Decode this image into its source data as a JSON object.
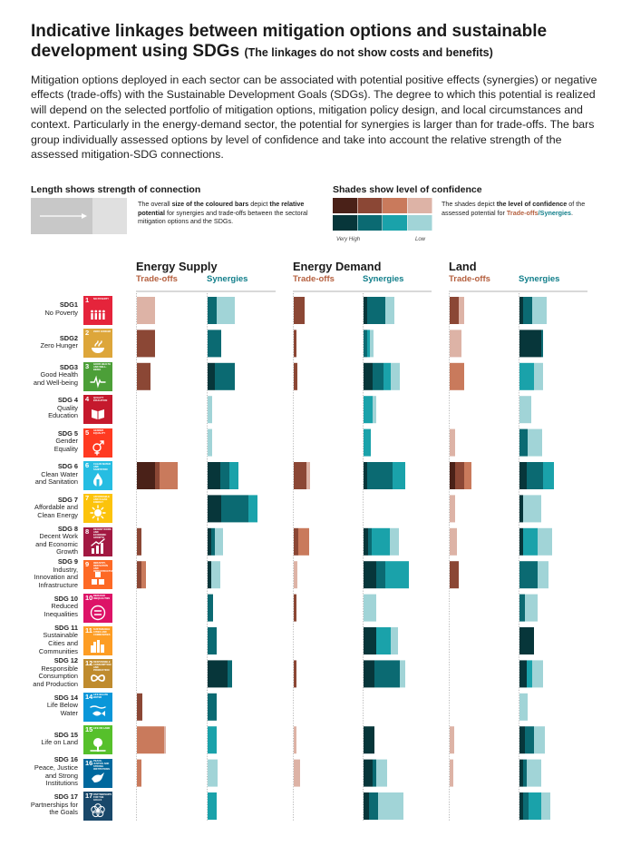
{
  "title": "Indicative linkages between mitigation options and sustainable development using SDGs",
  "subtitle": "(The linkages do not show costs and benefits)",
  "intro": "Mitigation options deployed in each sector can be associated with potential positive effects (synergies) or negative effects (trade-offs) with the Sustainable Development Goals (SDGs). The degree to which this potential is realized will depend on the selected portfolio of mitigation options, mitigation policy design, and local circumstances and context. Particularly in the energy-demand sector, the potential for synergies is larger than for trade-offs. The bars group individually assessed options by level of confidence and take into account the relative strength of the assessed mitigation-SDG connections.",
  "legend": {
    "length_heading": "Length shows strength of connection",
    "length_text_1": "The overall ",
    "length_text_b1": "size of the coloured bars",
    "length_text_2": " depict ",
    "length_text_b2": "the relative potential",
    "length_text_3": " for synergies and trade-offs between the sectoral mitigation options and the SDGs.",
    "shade_heading": "Shades show level of confidence",
    "shade_text_1": "The shades depict ",
    "shade_text_b1": "the level of confidence",
    "shade_text_2": " of the assessed potential for ",
    "shade_tradeoffs": "Trade-offs",
    "shade_slash": "/",
    "shade_synergies": "Synergies",
    "shade_text_3": ".",
    "very_high": "Very High",
    "low": "Low",
    "tradeoff_shades": [
      "#4a2118",
      "#8b4735",
      "#c97a5c",
      "#ddb3a6"
    ],
    "synergy_shades": [
      "#07363a",
      "#0b6a72",
      "#1aa2aa",
      "#a1d4d7"
    ]
  },
  "chart_data": {
    "type": "bar",
    "confidence_levels": [
      "Very High",
      "High",
      "Medium",
      "Low"
    ],
    "sectors": [
      {
        "name": "Energy Supply",
        "tradeoffs_label": "Trade-offs",
        "synergies_label": "Synergies"
      },
      {
        "name": "Energy Demand",
        "tradeoffs_label": "Trade-offs",
        "synergies_label": "Synergies"
      },
      {
        "name": "Land",
        "tradeoffs_label": "Trade-offs",
        "synergies_label": "Synergies"
      }
    ],
    "sdgs": [
      {
        "id": "SDG1",
        "name": "No Poverty",
        "num": "1",
        "tile": "NO POVERTY",
        "color": "#e5243b",
        "icon": "people-icon",
        "values": [
          [
            [
              0,
              0,
              0,
              20
            ],
            [
              0,
              10,
              0,
              20
            ]
          ],
          [
            [
              0,
              12,
              0,
              0
            ],
            [
              4,
              20,
              0,
              10
            ]
          ],
          [
            [
              0,
              10,
              0,
              6
            ],
            [
              4,
              10,
              0,
              16
            ]
          ]
        ]
      },
      {
        "id": "SDG2",
        "name": "Zero Hunger",
        "num": "2",
        "tile": "ZERO HUNGER",
        "color": "#dda63a",
        "icon": "bowl-icon",
        "values": [
          [
            [
              0,
              20,
              0,
              0
            ],
            [
              0,
              15,
              0,
              0
            ]
          ],
          [
            [
              0,
              3,
              0,
              0
            ],
            [
              0,
              4,
              3,
              4
            ]
          ],
          [
            [
              0,
              0,
              0,
              13
            ],
            [
              24,
              2,
              0,
              0
            ]
          ]
        ]
      },
      {
        "id": "SDG3",
        "name": "Good Health\nand Well-being",
        "num": "3",
        "tile": "GOOD HEALTH AND WELL-BEING",
        "color": "#4c9f38",
        "icon": "heartbeat-icon",
        "values": [
          [
            [
              0,
              15,
              0,
              0
            ],
            [
              8,
              22,
              0,
              0
            ]
          ],
          [
            [
              0,
              4,
              0,
              0
            ],
            [
              10,
              12,
              8,
              10
            ]
          ],
          [
            [
              0,
              0,
              16,
              0
            ],
            [
              0,
              0,
              16,
              10
            ]
          ]
        ]
      },
      {
        "id": "SDG 4",
        "name": "Quality\nEducation",
        "num": "4",
        "tile": "QUALITY EDUCATION",
        "color": "#c5192d",
        "icon": "book-icon",
        "values": [
          [
            [
              0,
              0,
              0,
              0
            ],
            [
              0,
              0,
              0,
              5
            ]
          ],
          [
            [
              0,
              0,
              0,
              0
            ],
            [
              0,
              0,
              10,
              4
            ]
          ],
          [
            [
              0,
              0,
              0,
              0
            ],
            [
              0,
              0,
              0,
              13
            ]
          ]
        ]
      },
      {
        "id": "SDG 5",
        "name": "Gender\nEquality",
        "num": "5",
        "tile": "GENDER EQUALITY",
        "color": "#ff3a21",
        "icon": "gender-icon",
        "values": [
          [
            [
              0,
              0,
              0,
              0
            ],
            [
              0,
              0,
              0,
              5
            ]
          ],
          [
            [
              0,
              0,
              0,
              0
            ],
            [
              0,
              0,
              8,
              0
            ]
          ],
          [
            [
              0,
              0,
              0,
              6
            ],
            [
              0,
              9,
              0,
              16
            ]
          ]
        ]
      },
      {
        "id": "SDG 6",
        "name": "Clean Water\nand Sanitation",
        "num": "6",
        "tile": "CLEAN WATER AND SANITATION",
        "color": "#26bde2",
        "icon": "drop-icon",
        "values": [
          [
            [
              20,
              5,
              20,
              0
            ],
            [
              14,
              10,
              10,
              0
            ]
          ],
          [
            [
              0,
              14,
              0,
              4
            ],
            [
              4,
              28,
              14,
              0
            ]
          ],
          [
            [
              6,
              10,
              8,
              0
            ],
            [
              8,
              18,
              12,
              0
            ]
          ]
        ]
      },
      {
        "id": "SDG 7",
        "name": "Affordable and\nClean Energy",
        "num": "7",
        "tile": "AFFORDABLE AND CLEAN ENERGY",
        "color": "#fcc30b",
        "icon": "sun-icon",
        "values": [
          [
            [
              0,
              0,
              0,
              0
            ],
            [
              15,
              30,
              10,
              0
            ]
          ],
          [
            [
              0,
              0,
              0,
              0
            ],
            [
              0,
              0,
              0,
              0
            ]
          ],
          [
            [
              0,
              0,
              0,
              6
            ],
            [
              4,
              0,
              0,
              20
            ]
          ]
        ]
      },
      {
        "id": "SDG 8",
        "name": "Decent Work\nand Economic\nGrowth",
        "num": "8",
        "tile": "DECENT WORK AND ECONOMIC GROWTH",
        "color": "#a21942",
        "icon": "growth-icon",
        "values": [
          [
            [
              0,
              5,
              0,
              0
            ],
            [
              4,
              4,
              0,
              9
            ]
          ],
          [
            [
              0,
              5,
              12,
              0
            ],
            [
              5,
              4,
              20,
              10
            ]
          ],
          [
            [
              0,
              0,
              0,
              8
            ],
            [
              4,
              0,
              16,
              16
            ]
          ]
        ]
      },
      {
        "id": "SDG 9",
        "name": "Industry,\nInnovation and\nInfrastructure",
        "num": "9",
        "tile": "INDUSTRY, INNOVATION AND INFRASTRUCTURE",
        "color": "#fd6925",
        "icon": "cubes-icon",
        "values": [
          [
            [
              0,
              5,
              5,
              0
            ],
            [
              4,
              0,
              0,
              10
            ]
          ],
          [
            [
              0,
              0,
              0,
              4
            ],
            [
              14,
              10,
              26,
              0
            ]
          ],
          [
            [
              0,
              10,
              0,
              0
            ],
            [
              0,
              20,
              0,
              12
            ]
          ]
        ]
      },
      {
        "id": "SDG 10",
        "name": "Reduced\nInequalities",
        "num": "10",
        "tile": "REDUCED INEQUALITIES",
        "color": "#dd1367",
        "icon": "equal-icon",
        "values": [
          [
            [
              0,
              0,
              0,
              0
            ],
            [
              0,
              6,
              0,
              0
            ]
          ],
          [
            [
              0,
              3,
              0,
              0
            ],
            [
              0,
              0,
              0,
              14
            ]
          ],
          [
            [
              0,
              0,
              0,
              0
            ],
            [
              0,
              6,
              0,
              14
            ]
          ]
        ]
      },
      {
        "id": "SDG 11",
        "name": "Sustainable\nCities and\nCommunities",
        "num": "11",
        "tile": "SUSTAINABLE CITIES AND COMMUNITIES",
        "color": "#fd9d24",
        "icon": "city-icon",
        "values": [
          [
            [
              0,
              0,
              0,
              0
            ],
            [
              0,
              10,
              0,
              0
            ]
          ],
          [
            [
              0,
              0,
              0,
              0
            ],
            [
              14,
              0,
              16,
              8
            ]
          ],
          [
            [
              0,
              0,
              0,
              0
            ],
            [
              16,
              0,
              0,
              0
            ]
          ]
        ]
      },
      {
        "id": "SDG 12",
        "name": "Responsible\nConsumption\nand Production",
        "num": "12",
        "tile": "RESPONSIBLE CONSUMPTION AND PRODUCTION",
        "color": "#bf8b2e",
        "icon": "infinity-icon",
        "values": [
          [
            [
              0,
              0,
              0,
              0
            ],
            [
              22,
              5,
              0,
              0
            ]
          ],
          [
            [
              0,
              3,
              0,
              0
            ],
            [
              12,
              28,
              0,
              6
            ]
          ],
          [
            [
              0,
              0,
              0,
              0
            ],
            [
              8,
              0,
              6,
              12
            ]
          ]
        ]
      },
      {
        "id": "SDG 14",
        "name": "Life Below\nWater",
        "num": "14",
        "tile": "LIFE BELOW WATER",
        "color": "#0a97d9",
        "icon": "fish-icon",
        "values": [
          [
            [
              0,
              6,
              0,
              0
            ],
            [
              0,
              10,
              0,
              0
            ]
          ],
          [
            [
              0,
              0,
              0,
              0
            ],
            [
              0,
              0,
              0,
              0
            ]
          ],
          [
            [
              0,
              0,
              0,
              0
            ],
            [
              0,
              0,
              0,
              9
            ]
          ]
        ]
      },
      {
        "id": "SDG 15",
        "name": "Life on Land",
        "num": "15",
        "tile": "LIFE ON LAND",
        "color": "#56c02b",
        "icon": "tree-icon",
        "values": [
          [
            [
              0,
              0,
              30,
              2
            ],
            [
              0,
              0,
              10,
              0
            ]
          ],
          [
            [
              0,
              0,
              0,
              3
            ],
            [
              12,
              0,
              0,
              0
            ]
          ],
          [
            [
              0,
              0,
              0,
              5
            ],
            [
              6,
              10,
              0,
              12
            ]
          ]
        ]
      },
      {
        "id": "SDG 16",
        "name": "Peace, Justice\nand Strong\nInstitutions",
        "num": "16",
        "tile": "PEACE, JUSTICE AND STRONG INSTITUTIONS",
        "color": "#00689d",
        "icon": "dove-icon",
        "values": [
          [
            [
              0,
              0,
              5,
              0
            ],
            [
              0,
              0,
              0,
              11
            ]
          ],
          [
            [
              0,
              0,
              0,
              7
            ],
            [
              10,
              4,
              0,
              12
            ]
          ],
          [
            [
              0,
              0,
              0,
              4
            ],
            [
              4,
              4,
              0,
              16
            ]
          ]
        ]
      },
      {
        "id": "SDG 17",
        "name": "Partnerships for\nthe Goals",
        "num": "17",
        "tile": "PARTNERSHIPS FOR THE GOALS",
        "color": "#19486a",
        "icon": "rings-icon",
        "values": [
          [
            [
              0,
              0,
              0,
              0
            ],
            [
              0,
              0,
              10,
              0
            ]
          ],
          [
            [
              0,
              0,
              0,
              0
            ],
            [
              6,
              10,
              0,
              28
            ]
          ],
          [
            [
              0,
              0,
              0,
              0
            ],
            [
              4,
              6,
              14,
              10
            ]
          ]
        ]
      }
    ]
  }
}
